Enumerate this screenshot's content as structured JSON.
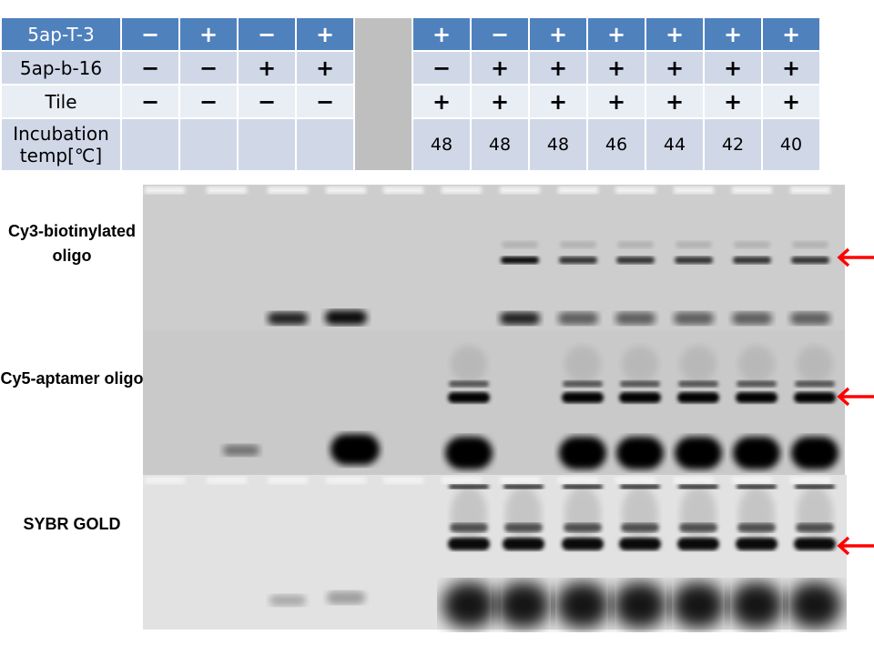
{
  "table": {
    "rows": [
      {
        "label": "5ap-T-3",
        "cells": [
          "−",
          "+",
          "−",
          "+",
          "+",
          "−",
          "+",
          "+",
          "+",
          "+",
          "+"
        ]
      },
      {
        "label": "5ap-b-16",
        "cells": [
          "−",
          "−",
          "+",
          "+",
          "−",
          "+",
          "+",
          "+",
          "+",
          "+",
          "+"
        ]
      },
      {
        "label": "Tile",
        "cells": [
          "−",
          "−",
          "−",
          "−",
          "+",
          "+",
          "+",
          "+",
          "+",
          "+",
          "+"
        ]
      },
      {
        "label": "Incubation temp[℃]",
        "cells": [
          "",
          "",
          "",
          "",
          "48",
          "48",
          "48",
          "46",
          "44",
          "42",
          "40"
        ]
      }
    ]
  },
  "panels": [
    {
      "label": "Cy3-biotinylated oligo"
    },
    {
      "label": "Cy5-aptamer oligo"
    },
    {
      "label": "SYBR GOLD"
    }
  ],
  "arrow_color": "#ff0000"
}
